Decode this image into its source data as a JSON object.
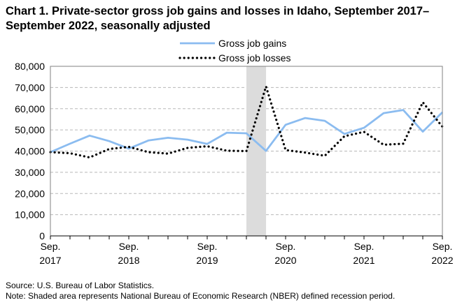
{
  "title": "Chart 1. Private-sector gross job gains and losses in Idaho, September 2017–September 2022, seasonally adjusted",
  "source": "Source: U.S. Bureau of Labor Statistics.",
  "note": "Note: Shaded area represents National Bureau of Economic Research (NBER) defined recession period.",
  "chart_data": {
    "type": "line",
    "x": [
      "Sep. 2017",
      "Dec. 2017",
      "Mar. 2018",
      "Jun. 2018",
      "Sep. 2018",
      "Dec. 2018",
      "Mar. 2019",
      "Jun. 2019",
      "Sep. 2019",
      "Dec. 2019",
      "Mar. 2020",
      "Jun. 2020",
      "Sep. 2020",
      "Dec. 2020",
      "Mar. 2021",
      "Jun. 2021",
      "Sep. 2021",
      "Dec. 2021",
      "Mar. 2022",
      "Jun. 2022",
      "Sep. 2022"
    ],
    "x_tick_labels": [
      {
        "index": 0,
        "lines": [
          "Sep.",
          "2017"
        ]
      },
      {
        "index": 4,
        "lines": [
          "Sep.",
          "2018"
        ]
      },
      {
        "index": 8,
        "lines": [
          "Sep.",
          "2019"
        ]
      },
      {
        "index": 12,
        "lines": [
          "Sep.",
          "2020"
        ]
      },
      {
        "index": 16,
        "lines": [
          "Sep.",
          "2021"
        ]
      },
      {
        "index": 20,
        "lines": [
          "Sep.",
          "2022"
        ]
      }
    ],
    "series": [
      {
        "name": "Gross job gains",
        "color": "#8bbcf0",
        "style": "solid",
        "values": [
          39500,
          43500,
          47300,
          44700,
          41200,
          45000,
          46300,
          45400,
          43400,
          48700,
          48400,
          40100,
          52400,
          55600,
          54300,
          48100,
          51000,
          57900,
          59400,
          49200,
          58300
        ]
      },
      {
        "name": "Gross job losses",
        "color": "#000000",
        "style": "dotted",
        "values": [
          39500,
          39000,
          37000,
          41000,
          42000,
          39500,
          38800,
          41500,
          42300,
          40200,
          40000,
          70500,
          40500,
          39300,
          37800,
          47000,
          49100,
          43000,
          43500,
          63000,
          51500
        ]
      }
    ],
    "recession": {
      "start": "Mar. 2020",
      "end": "Apr. 2020"
    },
    "ylim": [
      0,
      80000
    ],
    "y_ticks": [
      "0",
      "10,000",
      "20,000",
      "30,000",
      "40,000",
      "50,000",
      "60,000",
      "70,000",
      "80,000"
    ],
    "grid": true,
    "legend": "top-center"
  }
}
